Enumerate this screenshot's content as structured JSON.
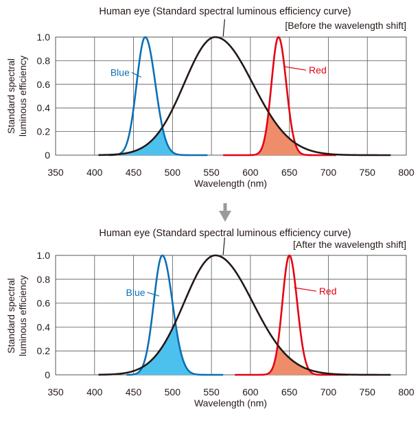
{
  "colors": {
    "eye": "#231815",
    "blue": "#0a6fb4",
    "blue_fill": "#4cc1ee",
    "red": "#e60012",
    "red_fill": "#ef8c6a",
    "grid": "#555555",
    "arrow": "#9a9a9a"
  },
  "icons": {
    "arrow": "down-arrow-icon"
  },
  "chart_data": [
    {
      "type": "line",
      "title": "Human eye (Standard spectral luminous efficiency curve)",
      "subtitle": "[Before the wavelength shift]",
      "xlabel": "Wavelength (nm)",
      "ylabel_lines": [
        "Standard spectral",
        "luminous efficiency"
      ],
      "xlim": [
        350,
        800
      ],
      "ylim": [
        0,
        1.0
      ],
      "x_ticks": [
        350,
        400,
        450,
        500,
        550,
        600,
        650,
        700,
        750,
        800
      ],
      "y_ticks": [
        0,
        0.2,
        0.4,
        0.6,
        0.8,
        1.0
      ],
      "y_tick_labels": [
        "0",
        "0.2",
        "0.4",
        "0.6",
        "0.8",
        "1.0"
      ],
      "grid": true,
      "series": [
        {
          "name": "",
          "role": "eye",
          "peak": 555,
          "width_left": 40,
          "width_right": 48,
          "x_range": [
            405,
            780
          ]
        },
        {
          "name": "Blue",
          "role": "blue",
          "peak": 465,
          "width_left": 11,
          "width_right": 13,
          "x_range": [
            418,
            545
          ]
        },
        {
          "name": "Red",
          "role": "red",
          "peak": 636,
          "width_left": 9,
          "width_right": 10,
          "x_range": [
            565,
            710
          ]
        }
      ],
      "annotations": [
        {
          "text": "Blue",
          "target": "blue",
          "label_x": 445,
          "label_y": 0.7,
          "point_x": 460,
          "point_y": 0.66
        },
        {
          "text": "Red",
          "target": "red",
          "label_x": 675,
          "label_y": 0.72,
          "point_x": 643,
          "point_y": 0.75
        }
      ]
    },
    {
      "type": "line",
      "title": "Human eye (Standard spectral luminous efficiency curve)",
      "subtitle": "[After the wavelength shift]",
      "xlabel": "Wavelength (nm)",
      "ylabel_lines": [
        "Standard spectral",
        "luminous efficiency"
      ],
      "xlim": [
        350,
        800
      ],
      "ylim": [
        0,
        1.0
      ],
      "x_ticks": [
        350,
        400,
        450,
        500,
        550,
        600,
        650,
        700,
        750,
        800
      ],
      "y_ticks": [
        0,
        0.2,
        0.4,
        0.6,
        0.8,
        1.0
      ],
      "y_tick_labels": [
        "0",
        "0.2",
        "0.4",
        "0.6",
        "0.8",
        "1.0"
      ],
      "grid": true,
      "series": [
        {
          "name": "",
          "role": "eye",
          "peak": 555,
          "width_left": 40,
          "width_right": 48,
          "x_range": [
            405,
            780
          ]
        },
        {
          "name": "Blue",
          "role": "blue",
          "peak": 487,
          "width_left": 11,
          "width_right": 13,
          "x_range": [
            441,
            565
          ]
        },
        {
          "name": "Red",
          "role": "red",
          "peak": 650,
          "width_left": 9,
          "width_right": 10,
          "x_range": [
            580,
            725
          ]
        }
      ],
      "annotations": [
        {
          "text": "Blue",
          "target": "blue",
          "label_x": 465,
          "label_y": 0.69,
          "point_x": 483,
          "point_y": 0.66
        },
        {
          "text": "Red",
          "target": "red",
          "label_x": 688,
          "label_y": 0.7,
          "point_x": 656,
          "point_y": 0.73
        }
      ]
    }
  ]
}
